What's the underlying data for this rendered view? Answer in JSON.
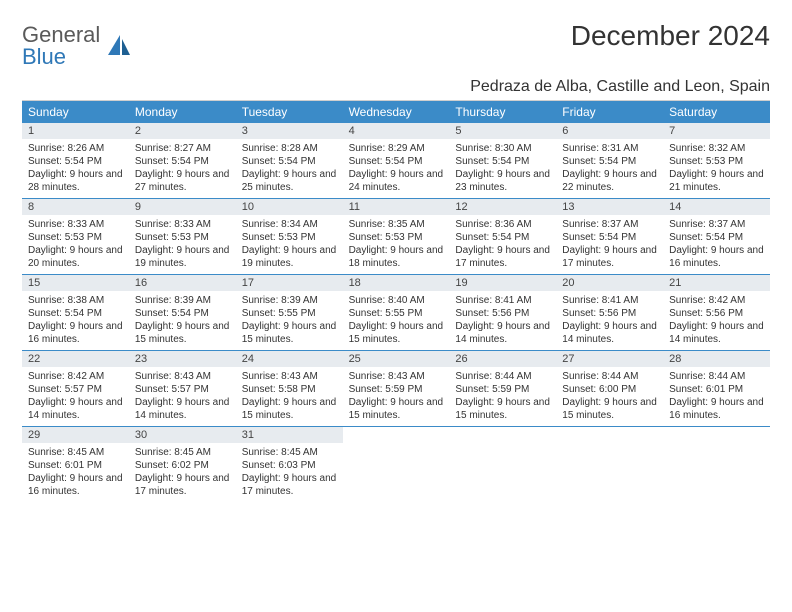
{
  "logo": {
    "text_top": "General",
    "text_bottom": "Blue"
  },
  "title": "December 2024",
  "location": "Pedraza de Alba, Castille and Leon, Spain",
  "colors": {
    "header_bg": "#3b8bc8",
    "header_text": "#ffffff",
    "daynum_bg": "#e7ebef",
    "week_divider": "#3b8bc8",
    "body_text": "#333333",
    "logo_gray": "#5a5a5a",
    "logo_blue": "#2f78b7"
  },
  "day_names": [
    "Sunday",
    "Monday",
    "Tuesday",
    "Wednesday",
    "Thursday",
    "Friday",
    "Saturday"
  ],
  "weeks": [
    [
      {
        "day": "1",
        "sunrise": "8:26 AM",
        "sunset": "5:54 PM",
        "daylight": "9 hours and 28 minutes."
      },
      {
        "day": "2",
        "sunrise": "8:27 AM",
        "sunset": "5:54 PM",
        "daylight": "9 hours and 27 minutes."
      },
      {
        "day": "3",
        "sunrise": "8:28 AM",
        "sunset": "5:54 PM",
        "daylight": "9 hours and 25 minutes."
      },
      {
        "day": "4",
        "sunrise": "8:29 AM",
        "sunset": "5:54 PM",
        "daylight": "9 hours and 24 minutes."
      },
      {
        "day": "5",
        "sunrise": "8:30 AM",
        "sunset": "5:54 PM",
        "daylight": "9 hours and 23 minutes."
      },
      {
        "day": "6",
        "sunrise": "8:31 AM",
        "sunset": "5:54 PM",
        "daylight": "9 hours and 22 minutes."
      },
      {
        "day": "7",
        "sunrise": "8:32 AM",
        "sunset": "5:53 PM",
        "daylight": "9 hours and 21 minutes."
      }
    ],
    [
      {
        "day": "8",
        "sunrise": "8:33 AM",
        "sunset": "5:53 PM",
        "daylight": "9 hours and 20 minutes."
      },
      {
        "day": "9",
        "sunrise": "8:33 AM",
        "sunset": "5:53 PM",
        "daylight": "9 hours and 19 minutes."
      },
      {
        "day": "10",
        "sunrise": "8:34 AM",
        "sunset": "5:53 PM",
        "daylight": "9 hours and 19 minutes."
      },
      {
        "day": "11",
        "sunrise": "8:35 AM",
        "sunset": "5:53 PM",
        "daylight": "9 hours and 18 minutes."
      },
      {
        "day": "12",
        "sunrise": "8:36 AM",
        "sunset": "5:54 PM",
        "daylight": "9 hours and 17 minutes."
      },
      {
        "day": "13",
        "sunrise": "8:37 AM",
        "sunset": "5:54 PM",
        "daylight": "9 hours and 17 minutes."
      },
      {
        "day": "14",
        "sunrise": "8:37 AM",
        "sunset": "5:54 PM",
        "daylight": "9 hours and 16 minutes."
      }
    ],
    [
      {
        "day": "15",
        "sunrise": "8:38 AM",
        "sunset": "5:54 PM",
        "daylight": "9 hours and 16 minutes."
      },
      {
        "day": "16",
        "sunrise": "8:39 AM",
        "sunset": "5:54 PM",
        "daylight": "9 hours and 15 minutes."
      },
      {
        "day": "17",
        "sunrise": "8:39 AM",
        "sunset": "5:55 PM",
        "daylight": "9 hours and 15 minutes."
      },
      {
        "day": "18",
        "sunrise": "8:40 AM",
        "sunset": "5:55 PM",
        "daylight": "9 hours and 15 minutes."
      },
      {
        "day": "19",
        "sunrise": "8:41 AM",
        "sunset": "5:56 PM",
        "daylight": "9 hours and 14 minutes."
      },
      {
        "day": "20",
        "sunrise": "8:41 AM",
        "sunset": "5:56 PM",
        "daylight": "9 hours and 14 minutes."
      },
      {
        "day": "21",
        "sunrise": "8:42 AM",
        "sunset": "5:56 PM",
        "daylight": "9 hours and 14 minutes."
      }
    ],
    [
      {
        "day": "22",
        "sunrise": "8:42 AM",
        "sunset": "5:57 PM",
        "daylight": "9 hours and 14 minutes."
      },
      {
        "day": "23",
        "sunrise": "8:43 AM",
        "sunset": "5:57 PM",
        "daylight": "9 hours and 14 minutes."
      },
      {
        "day": "24",
        "sunrise": "8:43 AM",
        "sunset": "5:58 PM",
        "daylight": "9 hours and 15 minutes."
      },
      {
        "day": "25",
        "sunrise": "8:43 AM",
        "sunset": "5:59 PM",
        "daylight": "9 hours and 15 minutes."
      },
      {
        "day": "26",
        "sunrise": "8:44 AM",
        "sunset": "5:59 PM",
        "daylight": "9 hours and 15 minutes."
      },
      {
        "day": "27",
        "sunrise": "8:44 AM",
        "sunset": "6:00 PM",
        "daylight": "9 hours and 15 minutes."
      },
      {
        "day": "28",
        "sunrise": "8:44 AM",
        "sunset": "6:01 PM",
        "daylight": "9 hours and 16 minutes."
      }
    ],
    [
      {
        "day": "29",
        "sunrise": "8:45 AM",
        "sunset": "6:01 PM",
        "daylight": "9 hours and 16 minutes."
      },
      {
        "day": "30",
        "sunrise": "8:45 AM",
        "sunset": "6:02 PM",
        "daylight": "9 hours and 17 minutes."
      },
      {
        "day": "31",
        "sunrise": "8:45 AM",
        "sunset": "6:03 PM",
        "daylight": "9 hours and 17 minutes."
      },
      null,
      null,
      null,
      null
    ]
  ],
  "labels": {
    "sunrise": "Sunrise:",
    "sunset": "Sunset:",
    "daylight": "Daylight:"
  }
}
